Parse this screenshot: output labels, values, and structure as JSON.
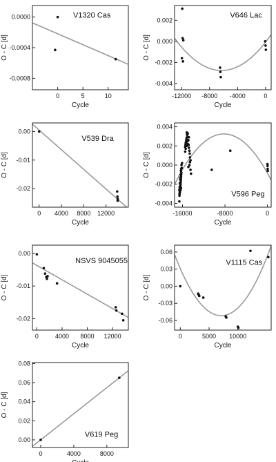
{
  "colors": {
    "points": "#111111",
    "fit": "#999999",
    "axes": "#222222",
    "background": "#ffffff"
  },
  "chart_data": [
    {
      "type": "scatter",
      "title": "V1320 Cas",
      "xlabel": "Cycle",
      "ylabel": "O - C [d]",
      "xlim": [
        -5,
        14
      ],
      "ylim": [
        -0.00095,
        0.00015
      ],
      "xticks": [
        0,
        5,
        10
      ],
      "yticks": [
        0.0,
        -0.0004,
        -0.0008
      ],
      "xticklabels": [
        "0",
        "5",
        "10"
      ],
      "yticklabels": [
        "0.0000",
        "-0.0004",
        "-0.0008"
      ],
      "grid": false,
      "x": [
        0,
        -0.5,
        11.5
      ],
      "y": [
        0.0,
        -0.00043,
        -0.00055
      ],
      "fit": {
        "type": "linear",
        "coefficients": [
          -0.000219,
          -2.85e-05
        ]
      }
    },
    {
      "type": "scatter",
      "title": "V646 Lac",
      "xlabel": "Cycle",
      "ylabel": "O - C [d]",
      "xlim": [
        -13000,
        800
      ],
      "ylim": [
        -0.0046,
        0.0034
      ],
      "xticks": [
        -12000,
        -8000,
        -4000,
        0
      ],
      "yticks": [
        0.002,
        0.0,
        -0.002,
        -0.004
      ],
      "xticklabels": [
        "-12000",
        "-8000",
        "-4000",
        "0"
      ],
      "yticklabels": [
        "0.002",
        "0.000",
        "-0.002",
        "-0.004"
      ],
      "grid": false,
      "x": [
        -11900,
        -11850,
        -11750,
        -11950,
        -11800,
        -6500,
        -6450,
        -6400,
        -60,
        0,
        40
      ],
      "y": [
        0.0031,
        0.0003,
        0.0001,
        -0.0016,
        -0.0019,
        -0.0025,
        -0.0029,
        -0.0034,
        0.0,
        -0.0004,
        -0.0008
      ],
      "fit": {
        "type": "quadratic",
        "coefficients": [
          -7.8e-05,
          8.55e-07,
          6.8e-11
        ]
      }
    },
    {
      "type": "scatter",
      "title": "V539 Dra",
      "xlabel": "Cycle",
      "ylabel": "O - C [d]",
      "xlim": [
        -1200,
        16000
      ],
      "ylim": [
        -0.0265,
        0.003
      ],
      "xticks": [
        0,
        4000,
        8000,
        12000
      ],
      "yticks": [
        0.0,
        -0.01,
        -0.02
      ],
      "xticklabels": [
        "0",
        "4000",
        "8000",
        "12000"
      ],
      "yticklabels": [
        "0.00",
        "-0.01",
        "-0.02"
      ],
      "grid": false,
      "x": [
        0,
        14000,
        14050,
        14100,
        14080
      ],
      "y": [
        0.0,
        -0.021,
        -0.0228,
        -0.0237,
        -0.0242
      ],
      "fit": {
        "type": "linear",
        "coefficients": [
          0.0005,
          -1.72e-06
        ]
      }
    },
    {
      "type": "scatter",
      "title": "V596 Peg",
      "xlabel": "Cycle",
      "ylabel": "O - C [d]",
      "xlim": [
        -17500,
        700
      ],
      "ylim": [
        -0.0044,
        0.0044
      ],
      "xticks": [
        -16000,
        -8000,
        0
      ],
      "yticks": [
        0.004,
        0.002,
        0.0,
        -0.002,
        -0.004
      ],
      "xticklabels": [
        "-16000",
        "-8000",
        "0"
      ],
      "yticklabels": [
        "0.004",
        "0.002",
        "0.000",
        "-0.002",
        "-0.004"
      ],
      "grid": false,
      "x": [
        -16600,
        -16580,
        -16550,
        -16520,
        -16500,
        -16480,
        -16450,
        -16420,
        -16400,
        -16380,
        -16350,
        -16320,
        -16300,
        -16280,
        -16250,
        -16220,
        -16600,
        -16550,
        -16500,
        -16450,
        -16400,
        -16350,
        -16300,
        -16260,
        -16200,
        -16150,
        -16100,
        -16580,
        -16480,
        -16380,
        -16280,
        -15500,
        -15450,
        -15400,
        -15350,
        -15300,
        -15250,
        -15200,
        -15150,
        -15100,
        -15050,
        -15000,
        -14900,
        -14850,
        -14800,
        -14700,
        -14650,
        -14600,
        -14500,
        -15500,
        -15400,
        -15200,
        -15000,
        -14800,
        -14600,
        -14500,
        -14400,
        -15300,
        -14700,
        -14900,
        -10500,
        -7000,
        0,
        20,
        40,
        60
      ],
      "y": [
        -0.0038,
        -0.0032,
        -0.003,
        -0.0028,
        -0.0027,
        -0.0025,
        -0.0024,
        -0.0022,
        -0.0021,
        -0.002,
        -0.0018,
        -0.0016,
        -0.0014,
        -0.0012,
        -0.001,
        -0.0008,
        -0.0026,
        -0.0023,
        -0.0019,
        -0.0015,
        -0.0013,
        -0.001,
        -0.0006,
        -0.0004,
        0.0,
        -0.0003,
        0.0002,
        -0.003,
        -0.0028,
        -0.0026,
        -0.0024,
        0.0019,
        0.0021,
        0.0023,
        0.0024,
        0.0026,
        0.0028,
        0.0034,
        0.0032,
        0.003,
        0.0025,
        0.0022,
        0.0026,
        0.0021,
        0.0018,
        0.0015,
        0.0012,
        0.0008,
        0.0005,
        0.0014,
        0.0017,
        0.002,
        0.0033,
        0.0029,
        0.0003,
        -0.0005,
        -0.0009,
        0.0023,
        0.0,
        -0.0002,
        -0.0005,
        0.0015,
        0.0001,
        -0.0001,
        -0.0004,
        -0.0006
      ],
      "fit": {
        "type": "quadratic",
        "coefficients": [
          -0.00085,
          -1e-06,
          -6.1e-11
        ]
      }
    },
    {
      "type": "scatter",
      "title": "NSVS 9045055",
      "xlabel": "Cycle",
      "ylabel": "O - C [d]",
      "xlim": [
        -700,
        14500
      ],
      "ylim": [
        -0.0235,
        0.0025
      ],
      "xticks": [
        0,
        4000,
        8000,
        12000
      ],
      "yticks": [
        0.0,
        -0.01,
        -0.02
      ],
      "xticklabels": [
        "0",
        "4000",
        "8000",
        "12000"
      ],
      "yticklabels": [
        "0.00",
        "-0.01",
        "-0.02"
      ],
      "grid": false,
      "x": [
        0,
        1100,
        1300,
        1500,
        1600,
        1700,
        3200,
        12500,
        12600,
        13500,
        13700
      ],
      "y": [
        -0.0003,
        -0.0045,
        -0.0062,
        -0.0072,
        -0.0078,
        -0.007,
        -0.0092,
        -0.0165,
        -0.0175,
        -0.0185,
        -0.0205
      ],
      "fit": {
        "type": "linear",
        "coefficients": [
          -0.0037,
          -1.1e-06
        ]
      }
    },
    {
      "type": "scatter",
      "title": "V1115 Cas",
      "xlabel": "Cycle",
      "ylabel": "O - C [d]",
      "xlim": [
        -1000,
        15800
      ],
      "ylim": [
        -0.077,
        0.072
      ],
      "xticks": [
        0,
        5000,
        10000
      ],
      "yticks": [
        0.06,
        0.03,
        0.0,
        -0.03,
        -0.06
      ],
      "xticklabels": [
        "0",
        "5000",
        "10000"
      ],
      "yticklabels": [
        "0.06",
        "0.03",
        "0.00",
        "-0.03",
        "-0.06"
      ],
      "grid": false,
      "x": [
        0,
        3100,
        3200,
        3300,
        4000,
        7900,
        8000,
        10000,
        10100,
        12200,
        15300
      ],
      "y": [
        0.0,
        -0.013,
        -0.015,
        -0.017,
        -0.02,
        -0.053,
        -0.055,
        -0.071,
        -0.073,
        0.062,
        0.051
      ],
      "fit": {
        "type": "quadratic",
        "coefficients": [
          0.0308,
          -2.32e-05,
          1.63e-09
        ]
      }
    },
    {
      "type": "scatter",
      "title": "V619 Peg",
      "xlabel": "Cycle",
      "ylabel": "O - C [d]",
      "xlim": [
        -1000,
        10600
      ],
      "ylim": [
        -0.008,
        0.081
      ],
      "xticks": [
        0,
        4000,
        8000
      ],
      "yticks": [
        0.08,
        0.06,
        0.04,
        0.02,
        0.0
      ],
      "xticklabels": [
        "0",
        "4000",
        "8000"
      ],
      "yticklabels": [
        "0.08",
        "0.06",
        "0.04",
        "0.02",
        "0.00"
      ],
      "grid": false,
      "x": [
        0,
        9500
      ],
      "y": [
        0.0,
        0.065
      ],
      "fit": {
        "type": "linear",
        "coefficients": [
          0.0,
          6.84e-06
        ]
      }
    }
  ]
}
